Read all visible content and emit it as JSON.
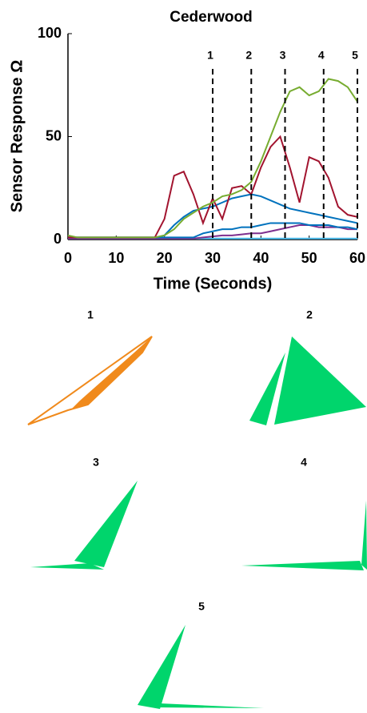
{
  "chart_data": {
    "type": "line",
    "title": "Cederwood",
    "x_label": "Time (Seconds)",
    "y_label": "Sensor Response Ω",
    "x": [
      0,
      2,
      4,
      6,
      8,
      10,
      12,
      14,
      16,
      18,
      20,
      22,
      24,
      26,
      28,
      30,
      32,
      34,
      36,
      38,
      40,
      42,
      44,
      46,
      48,
      50,
      52,
      54,
      56,
      58,
      60
    ],
    "xlim": [
      0,
      60
    ],
    "xticks": [
      0,
      10,
      20,
      30,
      40,
      50,
      60
    ],
    "ylim": [
      0,
      100
    ],
    "yticks": [
      0,
      50,
      100
    ],
    "series": [
      {
        "color": "#77ac30",
        "values": [
          2,
          1,
          1,
          1,
          1,
          1,
          1,
          1,
          1,
          1,
          2,
          5,
          10,
          13,
          16,
          18,
          21,
          22,
          24,
          28,
          38,
          50,
          62,
          72,
          74,
          70,
          72,
          78,
          77,
          74,
          67
        ]
      },
      {
        "color": "#a2142f",
        "values": [
          1,
          1,
          1,
          1,
          1,
          1,
          1,
          1,
          1,
          1,
          10,
          31,
          33,
          22,
          8,
          20,
          10,
          25,
          26,
          22,
          35,
          45,
          50,
          35,
          18,
          40,
          38,
          30,
          16,
          12,
          11
        ]
      },
      {
        "color": "#0072bd",
        "values": [
          1,
          1,
          1,
          1,
          1,
          1,
          1,
          1,
          1,
          1,
          2,
          7,
          11,
          14,
          15,
          16,
          18,
          20,
          21,
          22,
          21,
          19,
          17,
          15,
          14,
          13,
          12,
          11,
          10,
          9,
          8
        ]
      },
      {
        "color": "#0072bd",
        "values": [
          1,
          1,
          1,
          1,
          1,
          1,
          1,
          1,
          1,
          1,
          1,
          1,
          1,
          1,
          3,
          4,
          5,
          5,
          6,
          6,
          7,
          8,
          8,
          8,
          8,
          7,
          7,
          7,
          6,
          6,
          5
        ]
      },
      {
        "color": "#7e2f8e",
        "values": [
          0.5,
          0.5,
          0.5,
          0.5,
          0.5,
          0.5,
          0.5,
          0.5,
          0.5,
          0.5,
          0.5,
          0.5,
          0.5,
          0.5,
          1,
          1.5,
          2,
          2,
          2.5,
          3,
          3,
          4,
          5,
          6,
          7,
          7,
          6,
          6,
          6,
          5,
          5
        ]
      },
      {
        "color": "#4dbeee",
        "values": [
          0.5,
          0.5,
          0.5,
          0.5,
          0.5,
          0.5,
          0.5,
          0.5,
          0.5,
          0.5,
          0.5,
          0.5,
          0.5,
          0.5,
          0.5,
          0.5,
          0.5,
          0.5,
          0.5,
          0.5,
          0.5,
          0.5,
          0.5,
          0.5,
          0.5,
          0.5,
          0.5,
          0.5,
          0.5,
          0.5,
          0.5
        ]
      }
    ],
    "markers": [
      {
        "x": 30,
        "label": "1"
      },
      {
        "x": 38,
        "label": "2"
      },
      {
        "x": 45,
        "label": "3"
      },
      {
        "x": 53,
        "label": "4"
      },
      {
        "x": 60,
        "label": "5"
      }
    ],
    "panels": [
      "1",
      "2",
      "3",
      "4",
      "5"
    ]
  }
}
